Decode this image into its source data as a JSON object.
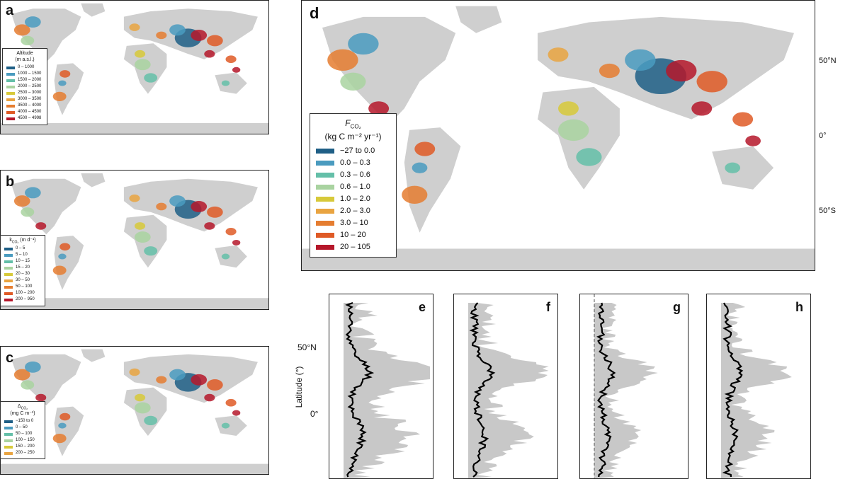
{
  "panels": {
    "a": {
      "letter": "a",
      "legend": {
        "title_line1": "Altitude",
        "title_line2": "(m a.s.l.)",
        "items": [
          "0 – 1000",
          "1000 – 1500",
          "1500 – 2000",
          "2000 – 2500",
          "2500 – 3000",
          "3000 – 3500",
          "3500 – 4000",
          "4000 – 4500",
          "4500 – 4998"
        ]
      }
    },
    "b": {
      "letter": "b",
      "legend": {
        "title_line1": "k",
        "title_sub": "CO₂",
        "title_rest": " (m d⁻¹)",
        "items": [
          "0 – 5",
          "5 – 10",
          "10 – 15",
          "15 – 20",
          "20 – 30",
          "30 – 50",
          "50 – 100",
          "100 – 200",
          "200 – 950"
        ]
      }
    },
    "c": {
      "letter": "c",
      "legend": {
        "title_line1": "Δ",
        "title_sub": "CO₂",
        "title_line2": "(mg C m⁻³)",
        "items": [
          "−150 to 0",
          "0 – 50",
          "50 – 100",
          "100 – 150",
          "150 – 200",
          "200 – 250"
        ]
      }
    },
    "d": {
      "letter": "d",
      "legend": {
        "title_f": "F",
        "title_sub": "CO₂",
        "title_units": "(kg C m⁻² yr⁻¹)",
        "items": [
          "−27 to 0.0",
          "0.0 – 0.3",
          "0.3 – 0.6",
          "0.6 – 1.0",
          "1.0 – 2.0",
          "2.0 – 3.0",
          "3.0 – 10",
          "10 – 20",
          "20 – 105"
        ]
      },
      "lat_labels": [
        "50°N",
        "0°",
        "50°S"
      ]
    }
  },
  "legend_colors": [
    "#1f5f86",
    "#4a9bbf",
    "#64bfa8",
    "#a9d3a0",
    "#d7c93a",
    "#e9a441",
    "#e57d30",
    "#df5a26",
    "#b5172a"
  ],
  "profiles": {
    "ylabel": "Latitude (°)",
    "ytick_labels": [
      "50°N",
      "0°"
    ],
    "letters": [
      "e",
      "f",
      "g",
      "h"
    ]
  }
}
